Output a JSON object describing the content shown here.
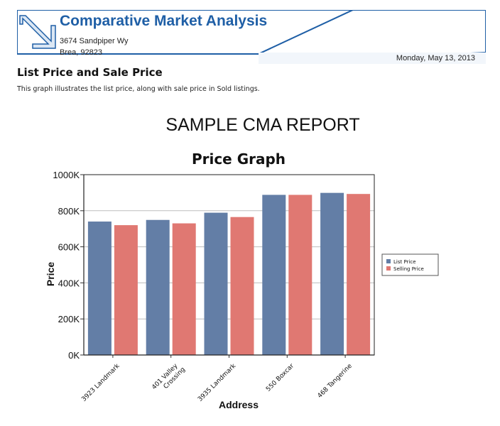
{
  "header": {
    "title": "Comparative Market Analysis",
    "address_line1": "3674 Sandpiper Wy",
    "address_line2": "Brea, 92823",
    "date": "Monday, May 13, 2013"
  },
  "section": {
    "title": "List Price and Sale Price",
    "description": "This graph illustrates the list price, along with sale price in Sold listings."
  },
  "report_title": "SAMPLE CMA REPORT",
  "colors": {
    "brand": "#1f5fa6",
    "list_price": "#637ea6",
    "selling_price": "#e07872"
  },
  "chart_data": {
    "type": "bar",
    "title": "Price Graph",
    "xlabel": "Address",
    "ylabel": "Price",
    "categories": [
      "3923 Landmark",
      "401 Valley Crossing",
      "3935 Landmark",
      "550 Boxcar",
      "468 Tangerine"
    ],
    "category_lines": [
      [
        "3923 Landmark"
      ],
      [
        "401 Valley",
        "Crossing"
      ],
      [
        "3935 Landmark"
      ],
      [
        "550 Boxcar"
      ],
      [
        "468 Tangerine"
      ]
    ],
    "series": [
      {
        "name": "List Price",
        "values": [
          740000,
          749000,
          789000,
          888000,
          899000
        ]
      },
      {
        "name": "Selling Price",
        "values": [
          720000,
          730000,
          765000,
          888000,
          893000
        ]
      }
    ],
    "ylim": [
      0,
      1000000
    ],
    "yticks": [
      0,
      200000,
      400000,
      600000,
      800000,
      1000000
    ],
    "ytick_labels": [
      "0K",
      "200K",
      "400K",
      "600K",
      "800K",
      "1000K"
    ],
    "grid": true,
    "legend": "right"
  }
}
